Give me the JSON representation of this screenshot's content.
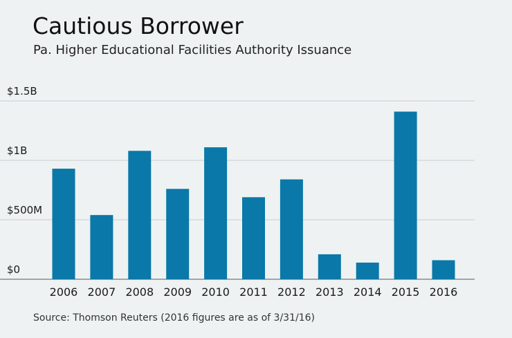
{
  "header": {
    "title": "Cautious Borrower",
    "subtitle": "Pa. Higher Educational Facilities Authority Issuance"
  },
  "footer": {
    "source": "Source: Thomson Reuters (2016 figures are as of 3/31/16)"
  },
  "colors": {
    "bar": "#0a78a8",
    "grid": "#c9cfd1",
    "axis": "#777777",
    "background": "#eef2f2"
  },
  "chart_data": {
    "type": "bar",
    "title": "Cautious Borrower",
    "subtitle": "Pa. Higher Educational Facilities Authority Issuance",
    "xlabel": "",
    "ylabel": "",
    "categories": [
      "2006",
      "2007",
      "2008",
      "2009",
      "2010",
      "2011",
      "2012",
      "2013",
      "2014",
      "2015",
      "2016"
    ],
    "values": [
      0.93,
      0.54,
      1.08,
      0.76,
      1.11,
      0.69,
      0.84,
      0.21,
      0.14,
      1.41,
      0.16
    ],
    "value_unit": "billions of dollars",
    "ylim": [
      0,
      1.5
    ],
    "yticks": [
      0,
      0.5,
      1,
      1.5
    ],
    "ytick_labels": [
      "$0",
      "$500M",
      "$1B",
      "$1.5B"
    ],
    "grid": true,
    "legend": "none"
  }
}
